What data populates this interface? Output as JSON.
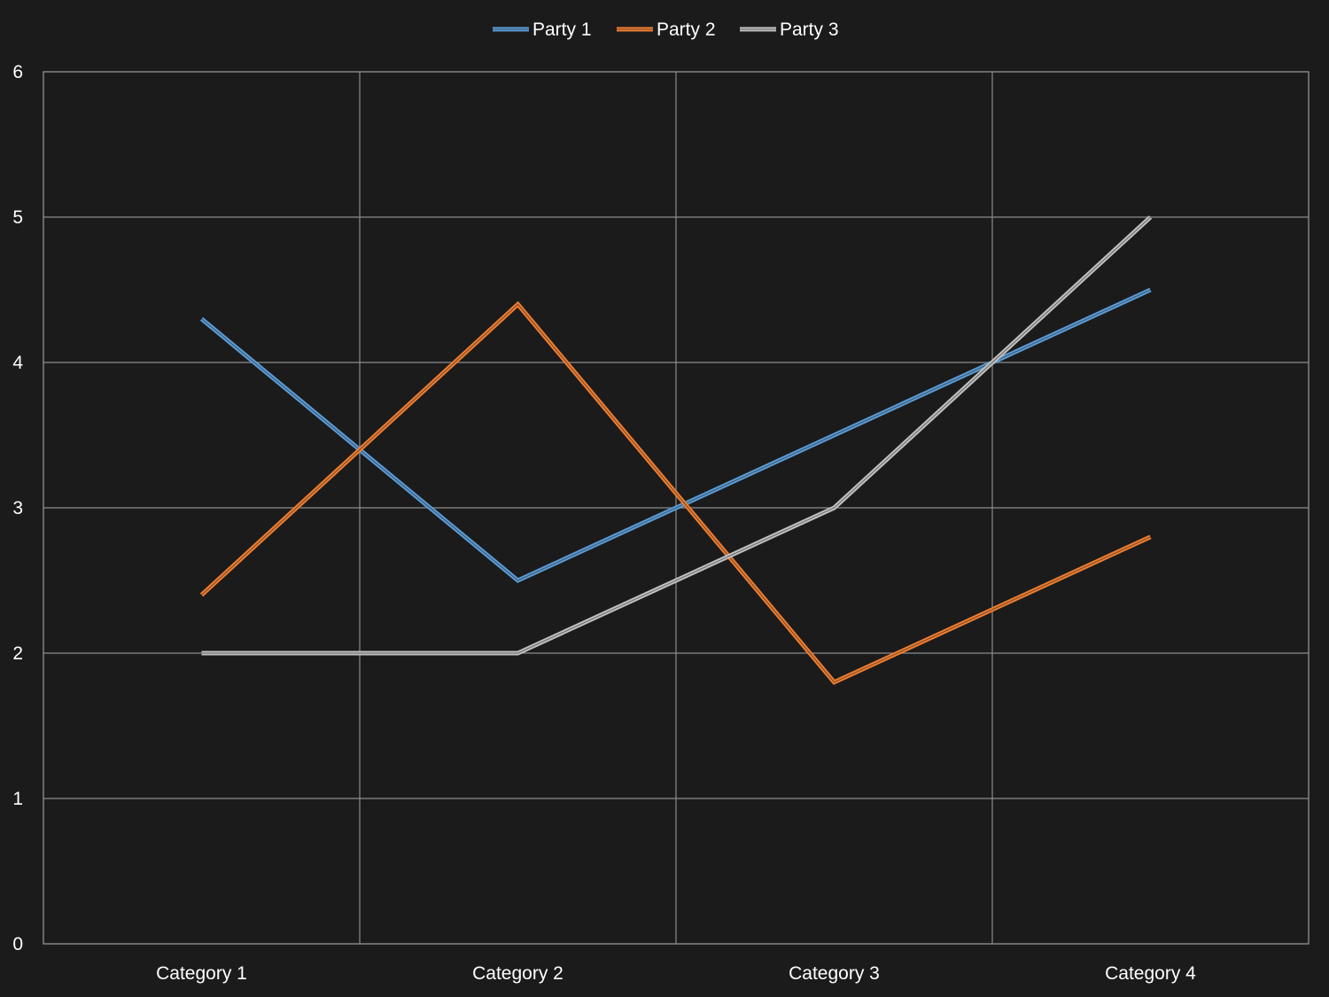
{
  "chart_data": {
    "type": "line",
    "title": "",
    "xlabel": "",
    "ylabel": "",
    "categories": [
      "Category 1",
      "Category 2",
      "Category 3",
      "Category 4"
    ],
    "series": [
      {
        "name": "Party 1",
        "values": [
          4.3,
          2.5,
          3.5,
          4.5
        ],
        "color": "#5b9bd5"
      },
      {
        "name": "Party 2",
        "values": [
          2.4,
          4.4,
          1.8,
          2.8
        ],
        "color": "#ed7d31"
      },
      {
        "name": "Party 3",
        "values": [
          2.0,
          2.0,
          3.0,
          5.0
        ],
        "color": "#bfbfbf"
      }
    ],
    "ylim": [
      0,
      6
    ],
    "yticks": [
      0,
      1,
      2,
      3,
      4,
      5,
      6
    ],
    "grid": true,
    "legend_position": "top",
    "background": "#1b1b1b",
    "gridline_color": "#8c8c8c",
    "text_color": "#ffffff"
  }
}
